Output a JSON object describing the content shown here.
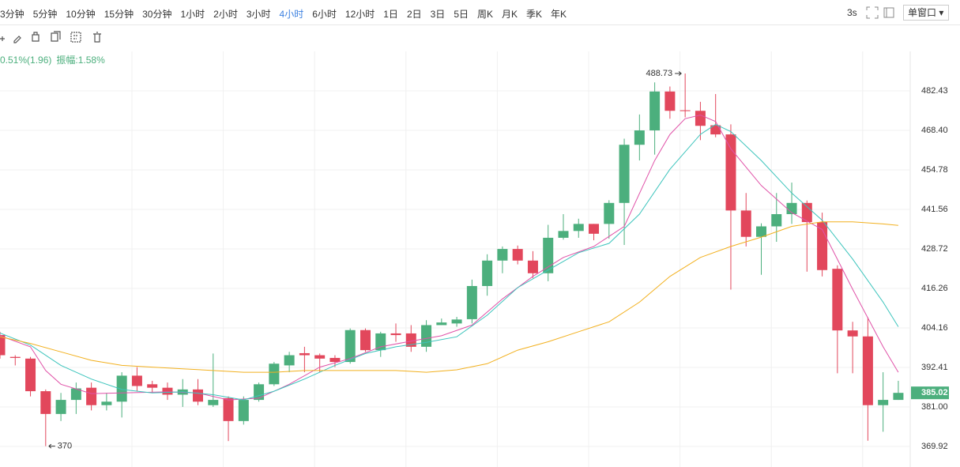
{
  "toolbar": {
    "periods": [
      "3分钟",
      "5分钟",
      "10分钟",
      "15分钟",
      "30分钟",
      "1小时",
      "2小时",
      "3小时",
      "4小时",
      "6小时",
      "12小时",
      "1日",
      "2日",
      "3日",
      "5日",
      "周K",
      "月K",
      "季K",
      "年K"
    ],
    "active_index": 8,
    "refresh": "3s",
    "window_mode": "单窗口"
  },
  "info": {
    "change": "0.51%(1.96)",
    "amplitude": "振幅:1.58%"
  },
  "chart_data": {
    "type": "candlestick",
    "log_scale": true,
    "grid": true,
    "up_color": "#4caf7d",
    "down_color": "#e2475c",
    "open": [
      402,
      395.5,
      395,
      385.5,
      379,
      383,
      386.5,
      381.5,
      382.5,
      390,
      387.5,
      386.5,
      384.5,
      386,
      381.5,
      383.5,
      377,
      383,
      387.5,
      393,
      396.6,
      396,
      395.2,
      394,
      403.5,
      397.5,
      402.5,
      402.5,
      398.5,
      405,
      405.5,
      406.8,
      417,
      425,
      428.7,
      425,
      421,
      432.3,
      434.5,
      436.8,
      436.8,
      443.7,
      463.4,
      468.4,
      482.2,
      475.5,
      475.3,
      470.2,
      467,
      441.2,
      432.6,
      436,
      440,
      443.7,
      437.4,
      422.4,
      403.4,
      401.6,
      381.5,
      383
    ],
    "high": [
      403,
      396,
      395.5,
      386,
      385,
      388,
      388,
      385,
      391,
      392.5,
      388.5,
      388,
      389,
      389,
      396.5,
      384,
      384,
      388,
      394,
      397,
      398.5,
      396.5,
      396,
      404,
      404,
      403,
      405.5,
      405,
      406.5,
      407,
      407.5,
      419,
      427,
      429.5,
      429.8,
      428,
      436.5,
      440,
      438.5,
      436.8,
      444.6,
      465.5,
      474,
      485.5,
      484,
      488.73,
      478.5,
      481.3,
      470.5,
      447,
      437,
      447,
      450.5,
      444.5,
      440.5,
      423.5,
      406,
      407.4,
      391,
      388.5
    ],
    "low": [
      395,
      393,
      384,
      370,
      377,
      379,
      380,
      380,
      378,
      385.5,
      385,
      383,
      381,
      381.5,
      381,
      371.4,
      376,
      382.5,
      387,
      391,
      391,
      391,
      392.5,
      393.5,
      397,
      395.5,
      400,
      397,
      397,
      405,
      404.5,
      405.5,
      414,
      421,
      423.8,
      419.5,
      418.5,
      431.7,
      432.3,
      431.5,
      432,
      430,
      458,
      460,
      472.5,
      473,
      465,
      466,
      415.9,
      429.5,
      420.5,
      431,
      436.8,
      421.5,
      420,
      390.7,
      390.7,
      371.5,
      374,
      383
    ],
    "close": [
      396,
      395.2,
      385.5,
      379,
      383,
      386.3,
      381.5,
      382.5,
      390,
      387,
      386.5,
      384.5,
      386,
      382.5,
      383,
      377,
      383,
      387.5,
      393.5,
      396,
      396,
      395,
      394,
      403.5,
      397.5,
      402.5,
      402,
      398.5,
      405,
      405.8,
      406.7,
      417,
      425,
      428.7,
      425,
      421,
      432.3,
      434.5,
      436.8,
      433.6,
      443.7,
      463.4,
      468.4,
      482.2,
      475.3,
      475.2,
      470,
      467,
      441.2,
      432.6,
      436,
      440,
      443.7,
      437.4,
      422,
      403.4,
      401.6,
      381.5,
      383,
      385.02
    ],
    "lines": [
      {
        "color": "#e052a8",
        "x": [
          0,
          2,
          3,
          4,
          6,
          8,
          11,
          13,
          15,
          17,
          19,
          21,
          23,
          25,
          27,
          29,
          31,
          33,
          35,
          37,
          39,
          41,
          43,
          44,
          45,
          46,
          47,
          48,
          50,
          52,
          54,
          56,
          58,
          59
        ],
        "values": [
          401.8,
          398.5,
          391.5,
          387.5,
          384.8,
          385,
          385.3,
          385,
          383,
          383.5,
          387.5,
          392.5,
          395,
          398.5,
          400.2,
          401.8,
          405,
          413,
          420,
          426,
          429.5,
          436,
          458,
          467,
          472.5,
          473.8,
          471.5,
          462,
          449.5,
          440.5,
          435,
          416,
          398.5,
          391
        ]
      },
      {
        "color": "#3cc4bc",
        "x": [
          0,
          2,
          4,
          6,
          8,
          10,
          12,
          14,
          16,
          18,
          20,
          22,
          24,
          26,
          28,
          30,
          32,
          34,
          36,
          38,
          40,
          42,
          44,
          46,
          47,
          48,
          50,
          52,
          54,
          56,
          58,
          59
        ],
        "values": [
          402.6,
          399,
          393,
          389,
          386,
          385,
          385.3,
          384.5,
          383,
          385.5,
          389,
          393,
          396.5,
          398.5,
          399.8,
          401.5,
          408,
          416.5,
          422,
          427.5,
          430.5,
          440,
          455,
          467,
          470.5,
          468,
          458,
          447,
          438,
          425.5,
          412,
          404.5
        ]
      },
      {
        "color": "#f2b01e",
        "x": [
          0,
          2,
          4,
          6,
          8,
          10,
          12,
          14,
          16,
          18,
          20,
          22,
          24,
          26,
          28,
          30,
          32,
          34,
          36,
          38,
          40,
          42,
          44,
          46,
          48,
          50,
          52,
          54,
          56,
          58,
          59
        ],
        "values": [
          401.5,
          399.5,
          397,
          394.5,
          393,
          392.5,
          392,
          391.5,
          391,
          391,
          391.5,
          391.5,
          391.5,
          391.5,
          391,
          391.7,
          393.5,
          397.5,
          400,
          403,
          406,
          412,
          420,
          426,
          429.5,
          432.5,
          436,
          437.5,
          437.5,
          436.8,
          436.3
        ]
      }
    ],
    "ylim": [
      364.28,
      496.88
    ],
    "yticks": [
      482.43,
      {
        "value": 468.4,
        "label": "468.40"
      },
      454.78,
      441.56,
      428.72,
      416.26,
      404.16,
      392.41,
      {
        "value": 381,
        "label": "381.00"
      },
      369.92
    ]
  }
}
